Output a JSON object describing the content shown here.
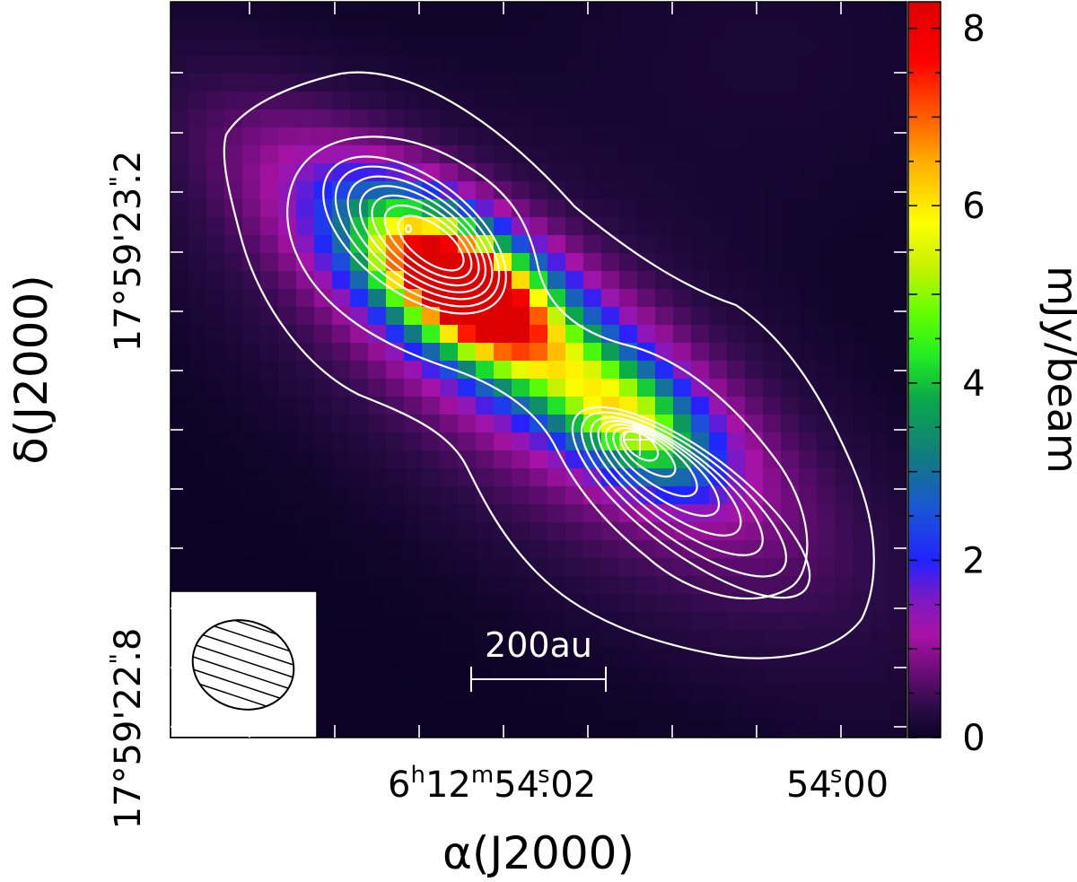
{
  "chart_data": {
    "type": "heatmap",
    "xlabel": "α(J2000)",
    "ylabel": "δ(J2000)",
    "x_tick_labels": [
      {
        "h": "6",
        "m": "12",
        "s": "54",
        "frac": "02",
        "value_s": 54.02
      },
      {
        "h": "",
        "m": "",
        "s": "54",
        "frac": "00",
        "value_s": 54.0
      }
    ],
    "y_tick_labels": [
      {
        "text": "17°59′23.″2",
        "deg": "17°59'23",
        "frac": "2",
        "value_arcsec": 23.2
      },
      {
        "text": "17°59′22.″8",
        "deg": "17°59'22",
        "frac": "8",
        "value_arcsec": 22.8
      }
    ],
    "colorbar": {
      "label": "mJy/beam",
      "range": [
        0,
        8.3
      ],
      "ticks": [
        "0",
        "2",
        "4",
        "6",
        "8"
      ],
      "tick_values": [
        0,
        2,
        4,
        6,
        8
      ],
      "colormap": "rainbow (dark violet → magenta → blue → cyan → green → yellow → orange → red)"
    },
    "peaks": [
      {
        "name": "NE emission peak",
        "value_mjy_beam": 8.2
      },
      {
        "name": "SW source (cross marker)",
        "value_mjy_beam": 3.5
      }
    ],
    "contours": {
      "color": "#ffffff",
      "levels_ne": 8,
      "levels_sw": 8
    },
    "scale_bar": {
      "label": "200au"
    },
    "beam": {
      "shape": "ellipse",
      "fill": "hatched",
      "position": "bottom-left"
    },
    "marker": {
      "type": "cross",
      "color": "#ffffff"
    }
  }
}
